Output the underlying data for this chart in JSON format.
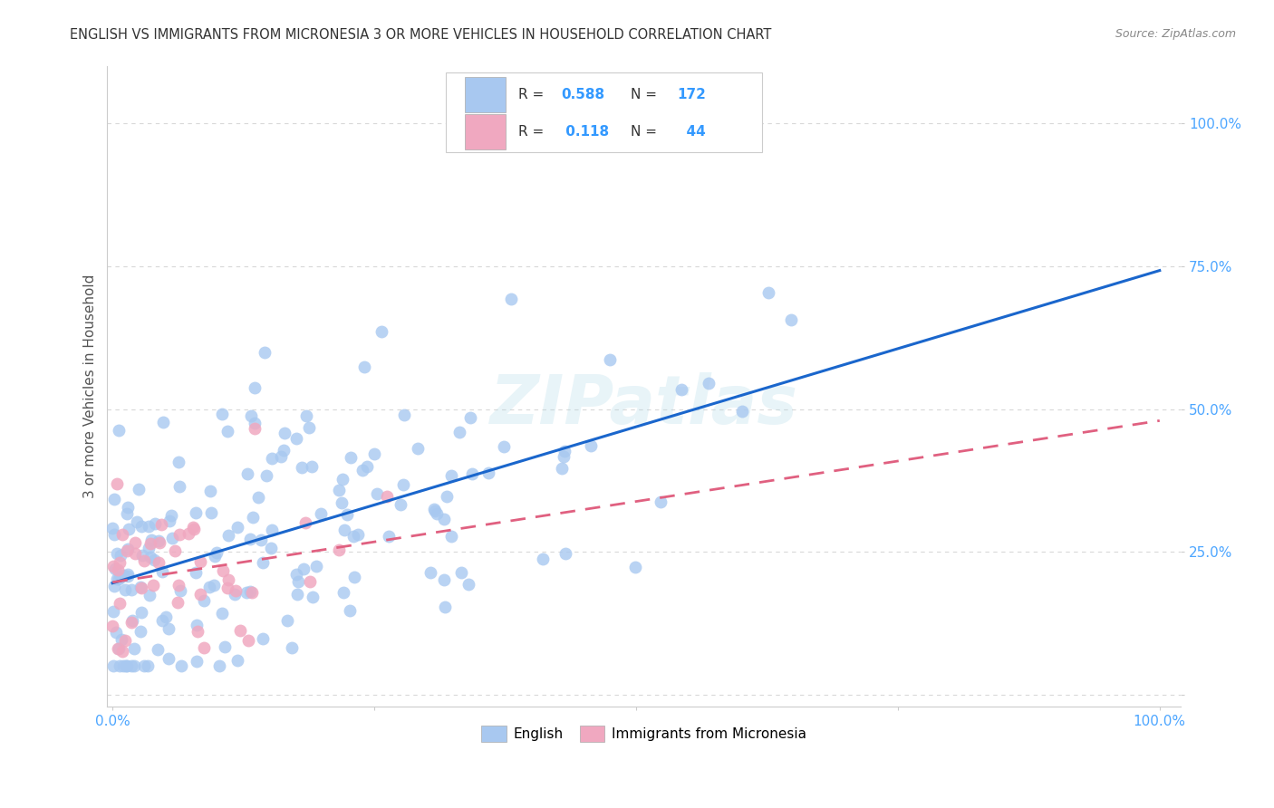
{
  "title": "ENGLISH VS IMMIGRANTS FROM MICRONESIA 3 OR MORE VEHICLES IN HOUSEHOLD CORRELATION CHART",
  "source": "Source: ZipAtlas.com",
  "ylabel": "3 or more Vehicles in Household",
  "series1_label": "English",
  "series2_label": "Immigrants from Micronesia",
  "R1": 0.588,
  "N1": 172,
  "R2": 0.118,
  "N2": 44,
  "color1": "#a8c8f0",
  "color2": "#f0a8c0",
  "trend1_color": "#1a66cc",
  "trend2_color": "#e06080",
  "watermark": "ZIPatlas",
  "bg_color": "#ffffff",
  "grid_color": "#d8d8d8",
  "title_color": "#333333",
  "source_color": "#888888",
  "tick_color": "#4da6ff",
  "label_color": "#555555"
}
